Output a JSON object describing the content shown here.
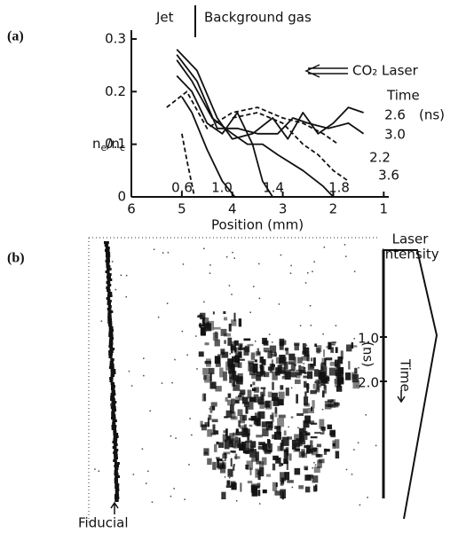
{
  "panel_a_label": "(a)",
  "chart_data": {
    "type": "line",
    "ylabel": [
      "n",
      "e",
      "/n",
      "c"
    ],
    "xlabel": "Position (mm)",
    "annotations": {
      "jet": "Jet",
      "background": "Background gas",
      "laser": "CO₂ Laser",
      "time": "Time",
      "time_unit": "(ns)"
    },
    "xlim": [
      6,
      0.9
    ],
    "xticks": [
      6,
      5,
      4,
      3,
      2,
      1
    ],
    "ylim": [
      0,
      0.31
    ],
    "yticks": [
      0,
      0.1,
      0.2,
      0.3
    ],
    "series": [
      {
        "name": "0.6",
        "color": "#111111",
        "style": "dashed",
        "x": [
          5.0,
          4.9,
          4.75
        ],
        "values": [
          0.12,
          0.07,
          0.0
        ]
      },
      {
        "name": "1.0",
        "color": "#111111",
        "style": "solid",
        "x": [
          5.0,
          4.8,
          4.5,
          4.2,
          3.95
        ],
        "values": [
          0.19,
          0.16,
          0.09,
          0.03,
          0.0
        ]
      },
      {
        "name": "1.4",
        "color": "#111111",
        "style": "solid",
        "x": [
          5.1,
          4.8,
          4.5,
          4.2,
          3.9,
          3.6,
          3.4,
          3.2
        ],
        "values": [
          0.23,
          0.2,
          0.14,
          0.12,
          0.16,
          0.1,
          0.03,
          0.0
        ]
      },
      {
        "name": "1.8",
        "color": "#111111",
        "style": "solid",
        "x": [
          5.1,
          4.8,
          4.4,
          4.0,
          3.7,
          3.4,
          3.1,
          2.6,
          2.2,
          2.0
        ],
        "values": [
          0.26,
          0.22,
          0.15,
          0.12,
          0.1,
          0.1,
          0.08,
          0.05,
          0.02,
          0.0
        ]
      },
      {
        "name": "2.2",
        "color": "#111111",
        "style": "dashed",
        "x": [
          5.3,
          4.9,
          4.5,
          4.0,
          3.5,
          3.0,
          2.6,
          2.2,
          1.9
        ],
        "values": [
          0.17,
          0.2,
          0.13,
          0.16,
          0.17,
          0.15,
          0.14,
          0.12,
          0.1
        ]
      },
      {
        "name": "2.6",
        "color": "#111111",
        "style": "solid",
        "x": [
          5.1,
          4.7,
          4.3,
          4.0,
          3.6,
          3.2,
          2.9,
          2.6,
          2.3,
          2.0,
          1.7,
          1.4
        ],
        "values": [
          0.28,
          0.24,
          0.15,
          0.11,
          0.12,
          0.15,
          0.11,
          0.16,
          0.12,
          0.14,
          0.17,
          0.16
        ]
      },
      {
        "name": "3.0",
        "color": "#111111",
        "style": "solid",
        "x": [
          5.1,
          4.7,
          4.3,
          3.9,
          3.5,
          3.1,
          2.8,
          2.5,
          2.1,
          1.7,
          1.4
        ],
        "values": [
          0.27,
          0.22,
          0.13,
          0.13,
          0.12,
          0.12,
          0.15,
          0.14,
          0.13,
          0.14,
          0.12
        ]
      },
      {
        "name": "3.6",
        "color": "#111111",
        "style": "dashed",
        "x": [
          4.0,
          3.5,
          3.0,
          2.6,
          2.3,
          2.0,
          1.7
        ],
        "values": [
          0.15,
          0.16,
          0.14,
          0.1,
          0.08,
          0.05,
          0.03
        ]
      }
    ]
  },
  "panel_b": {
    "label": "(b)",
    "fiducial": "Fiducial",
    "intensity_label": [
      "Laser",
      "Intensity"
    ],
    "time_ticks": [
      "1.0",
      "2.0"
    ],
    "time_label": "Time",
    "time_unit": "(ns)"
  }
}
